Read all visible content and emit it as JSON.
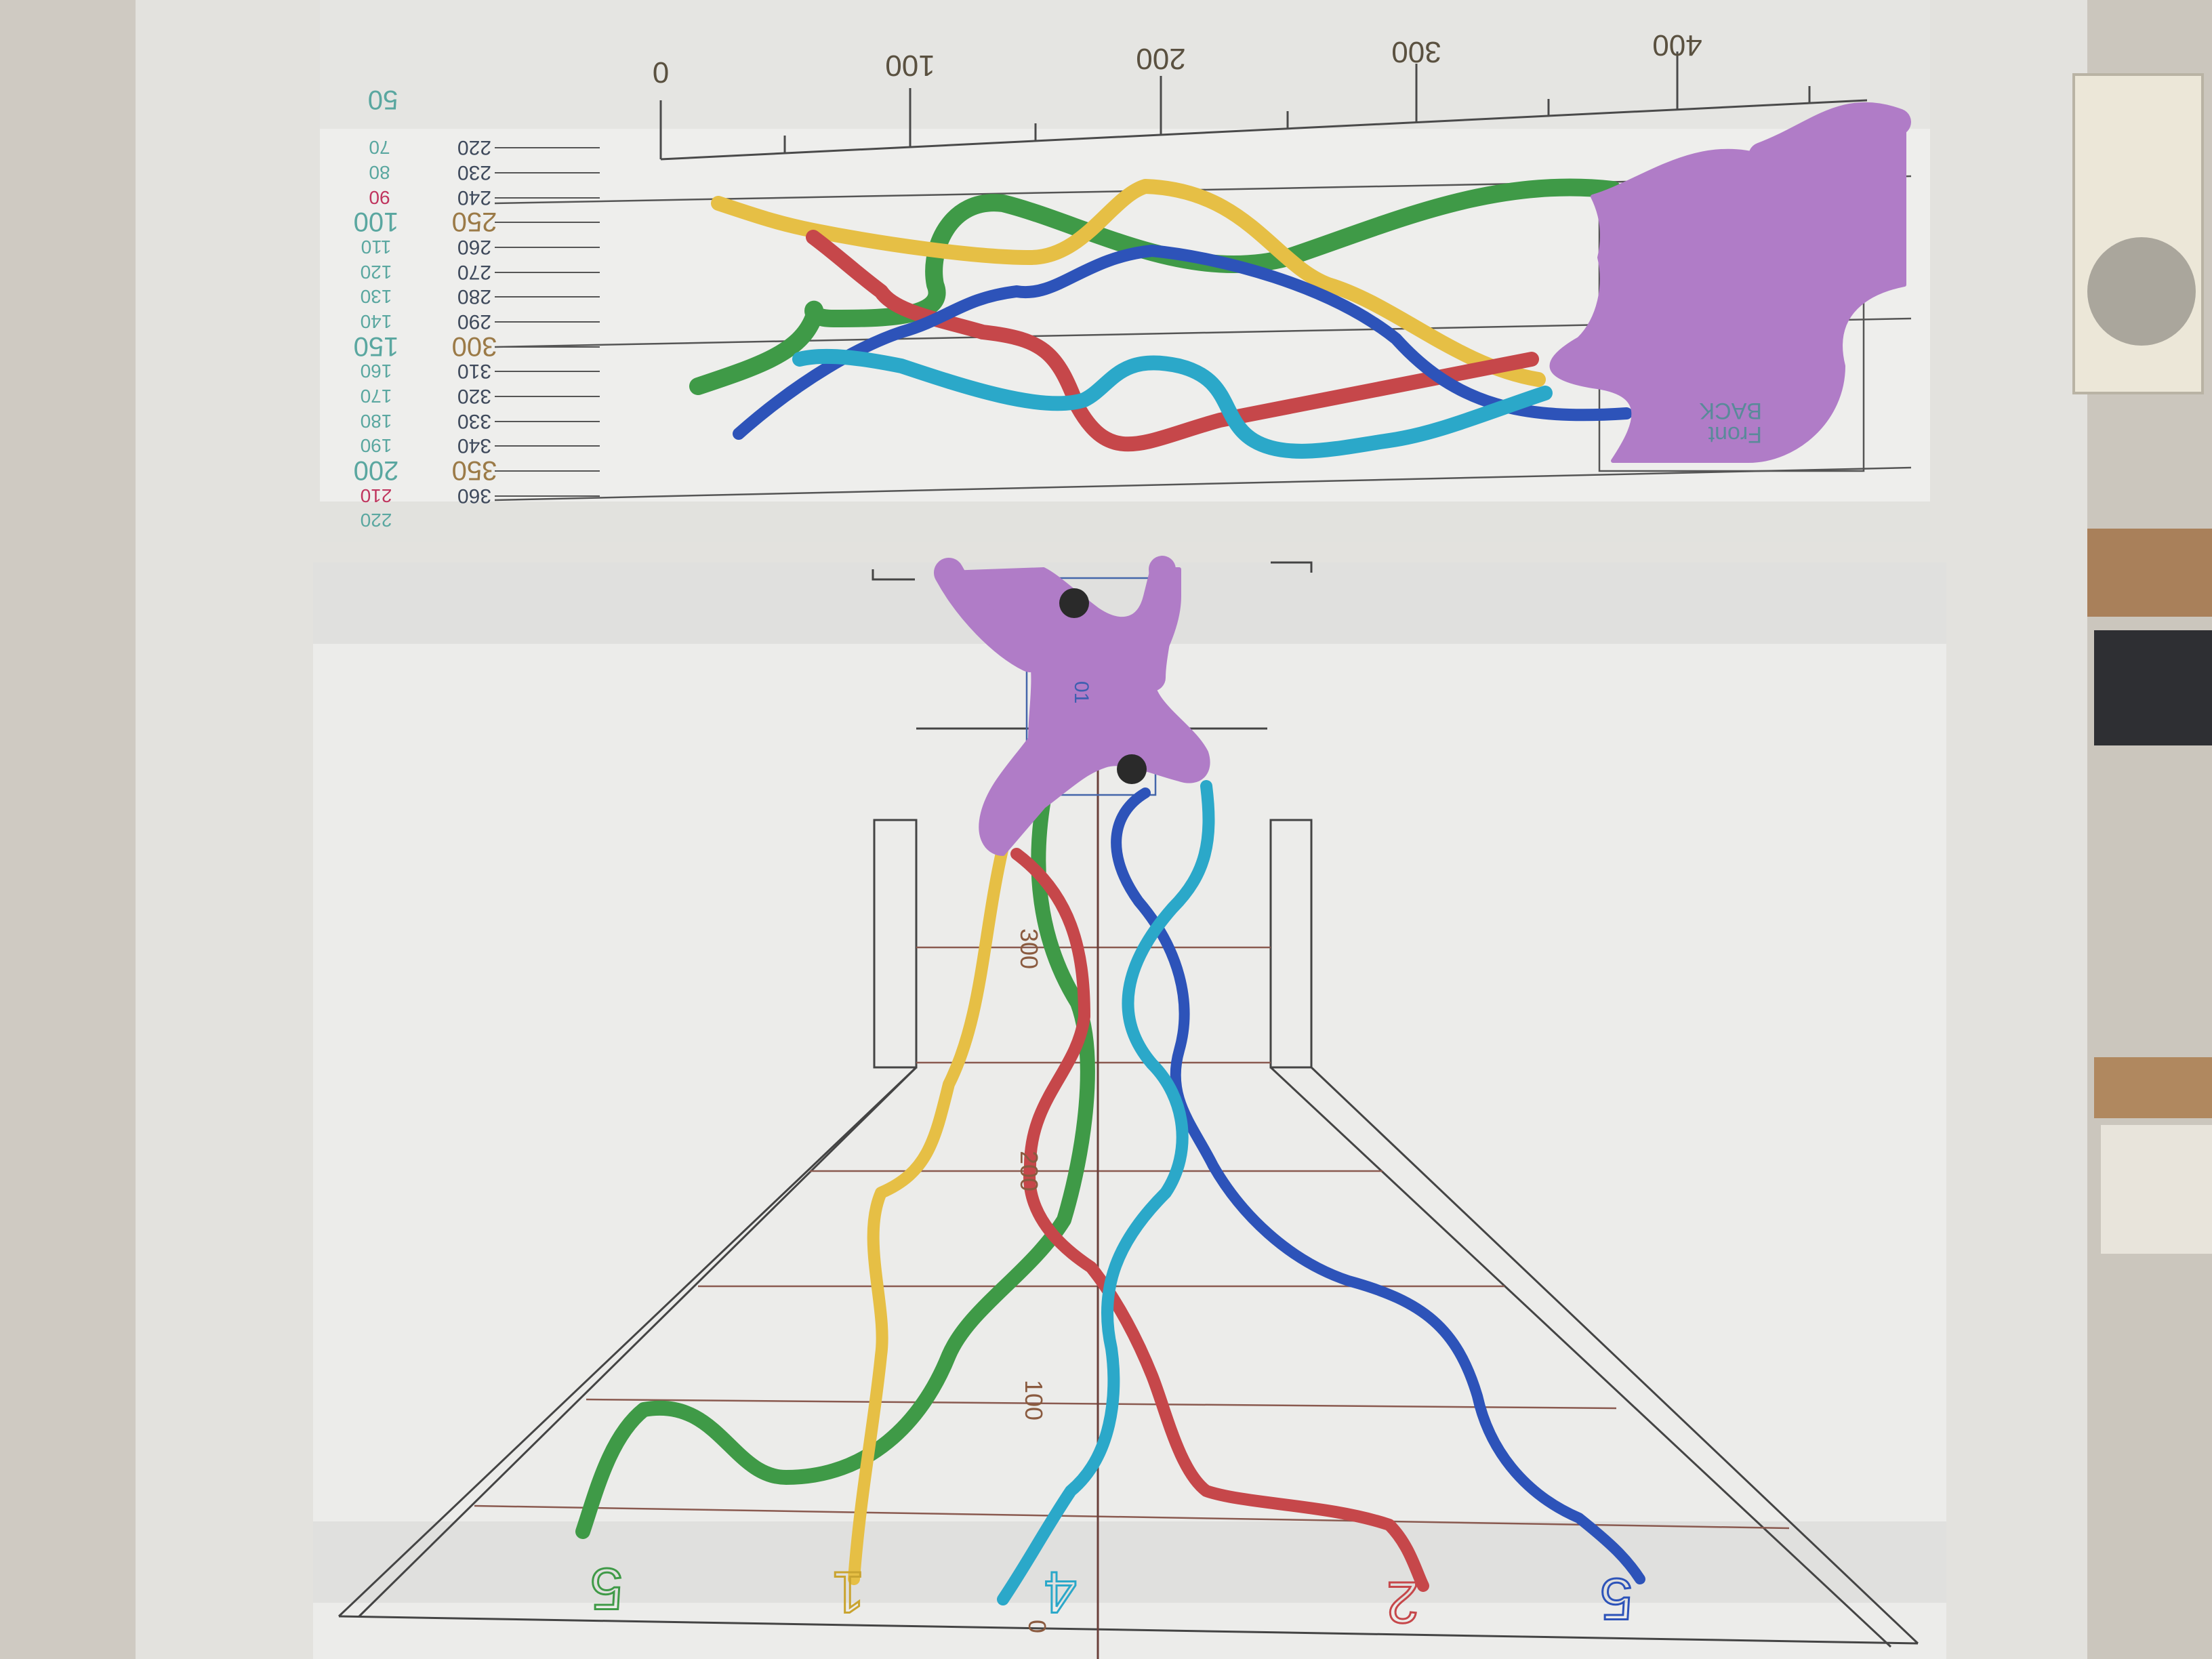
{
  "colors": {
    "neuron_body": "#b07cc7",
    "branch_green": "#3f9a47",
    "branch_yellow": "#e6bf45",
    "branch_red": "#c6474a",
    "branch_blue": "#2d53b9",
    "branch_cyan": "#2ba8c9",
    "paper": "#eeeeec",
    "wall": "#d9d6cf"
  },
  "top_sheet": {
    "x_ticks": [
      "0",
      "100",
      "200",
      "300",
      "400"
    ],
    "depth_labels": [
      "220",
      "230",
      "240",
      "250",
      "260",
      "270",
      "280",
      "290",
      "300",
      "310",
      "320",
      "330",
      "340",
      "350",
      "360"
    ],
    "height_labels": [
      "50",
      "70",
      "80",
      "90",
      "100",
      "110",
      "120",
      "130",
      "140",
      "150",
      "160",
      "170",
      "180",
      "190",
      "200",
      "210",
      "220"
    ],
    "panel_label_1": "Front",
    "panel_label_2": "BACK"
  },
  "bottom_sheet": {
    "axis_labels": [
      "300",
      "200",
      "100",
      "0"
    ],
    "soma_label": "01",
    "branch_numbers": [
      "5",
      "1",
      "4",
      "2",
      "5"
    ]
  }
}
